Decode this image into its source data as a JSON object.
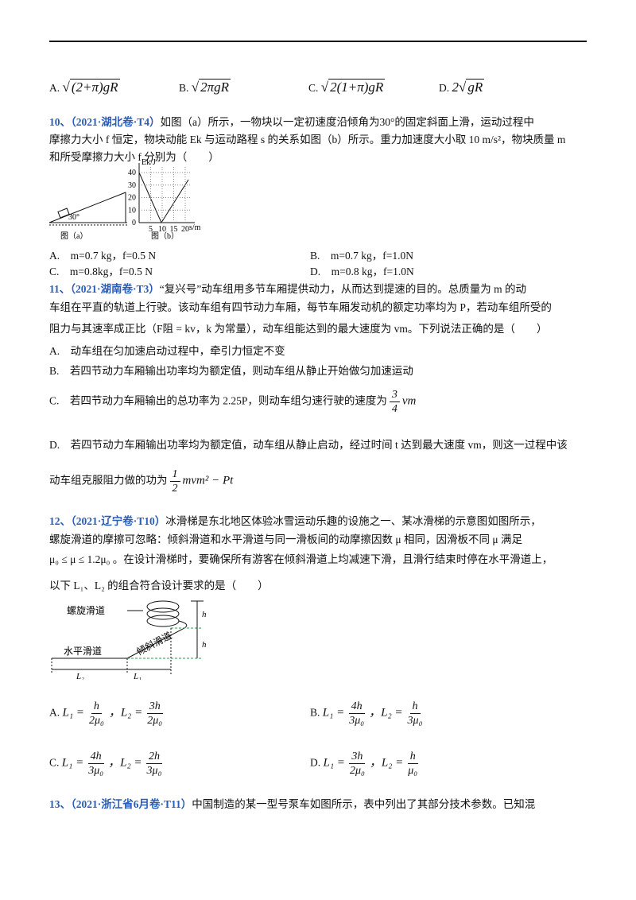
{
  "q9_options": [
    {
      "letter": "A.",
      "radicand": "(2+π)gR"
    },
    {
      "letter": "B.",
      "radicand": "2πgR"
    },
    {
      "letter": "C.",
      "radicand": "2(1+π)gR"
    },
    {
      "letter": "D.",
      "coefficient": "2",
      "radicand": "gR"
    }
  ],
  "q10": {
    "number": "10、",
    "source": "（2021·湖北卷·T4）",
    "lines": [
      "如图（a）所示，一物块以一定初速度沿倾角为30°的固定斜面上滑，运动过程中",
      "摩擦力大小 f 恒定，物块动能 Ek 与运动路程 s 的关系如图（b）所示。重力加速度大小取 10 m/s²，物块质量 m",
      "和所受摩擦力大小 f 分别为（　　）"
    ],
    "figure_a": {
      "angle": "30°",
      "caption": "图（a）"
    },
    "figure_b": {
      "y_label": "Ek/J",
      "x_label": "s/m",
      "yticks": [
        0,
        10,
        20,
        30,
        40
      ],
      "xticks": [
        5,
        10,
        15,
        20
      ],
      "caption": "图（b）"
    },
    "options": [
      "A.　m=0.7 kg，f=0.5 N",
      "B.　m=0.7 kg，f=1.0N",
      "C.　m=0.8kg，f=0.5 N",
      "D.　m=0.8 kg，f=1.0N"
    ]
  },
  "q11": {
    "number": "11、",
    "source": "（2021·湖南卷·T3）",
    "lines": [
      "“复兴号”动车组用多节车厢提供动力，从而达到提速的目的。总质量为 m 的动",
      "车组在平直的轨道上行驶。该动车组有四节动力车厢，每节车厢发动机的额定功率均为 P，若动车组所受的",
      "阻力与其速率成正比（F阻 = kv，k 为常量），动车组能达到的最大速度为 vm。下列说法正确的是（　　）"
    ],
    "option_a": "A.　动车组在匀加速启动过程中，牵引力恒定不变",
    "option_b": "B.　若四节动力车厢输出功率均为额定值，则动车组从静止开始做匀加速运动",
    "option_c": {
      "text": "C.　若四节动力车厢输出的总功率为 2.25P，则动车组匀速行驶的速度为",
      "num": "3",
      "den": "4",
      "rest": "vm"
    },
    "option_d": {
      "text": "D.　若四节动力车厢输出功率均为额定值，动车组从静止启动，经过时间 t 达到最大速度 vm，则这一过程中该",
      "text2": "动车组克服阻力做的功为",
      "num": "1",
      "den": "2",
      "rest": "mvm² − Pt"
    }
  },
  "q12": {
    "number": "12、",
    "source": "（2021·辽宁卷·T10）",
    "lines": [
      "冰滑梯是东北地区体验冰雪运动乐趣的设施之一、某冰滑梯的示意图如图所示，",
      "螺旋滑道的摩擦可忽略：倾斜滑道和水平滑道与同一滑板间的动摩擦因数 μ 相同，因滑板不同 μ 满足",
      "μ₀ ≤ μ ≤ 1.2μ₀ 。在设计滑梯时，要确保所有游客在倾斜滑道上均减速下滑，且滑行结束时停在水平滑道上，",
      "以下 L₁、L₂ 的组合符合设计要求的是（　　）"
    ],
    "figure": {
      "spiral": "螺旋滑道",
      "incline": "倾斜滑道",
      "horizontal": "水平滑道",
      "h_top": "h",
      "h_bottom": "h",
      "l2": "L₂",
      "l1": "L₁"
    },
    "options": [
      {
        "letter": "A.",
        "l1_label": "L₁ =",
        "l1_num": "h",
        "l1_den": "2μ₀",
        "l2_label": "，L₂ =",
        "l2_num": "3h",
        "l2_den": "2μ₀"
      },
      {
        "letter": "B.",
        "l1_label": "L₁ =",
        "l1_num": "4h",
        "l1_den": "3μ₀",
        "l2_label": "，L₂ =",
        "l2_num": "h",
        "l2_den": "3μ₀"
      },
      {
        "letter": "C.",
        "l1_label": "L₁ =",
        "l1_num": "4h",
        "l1_den": "3μ₀",
        "l2_label": "，L₂ =",
        "l2_num": "2h",
        "l2_den": "3μ₀"
      },
      {
        "letter": "D.",
        "l1_label": "L₁ =",
        "l1_num": "3h",
        "l1_den": "2μ₀",
        "l2_label": "，L₂ =",
        "l2_num": "h",
        "l2_den": "μ₀"
      }
    ]
  },
  "q13": {
    "number": "13、",
    "source": "（2021·浙江省6月卷·T11）",
    "text": "中国制造的某一型号泵车如图所示，表中列出了其部分技术参数。已知混"
  }
}
